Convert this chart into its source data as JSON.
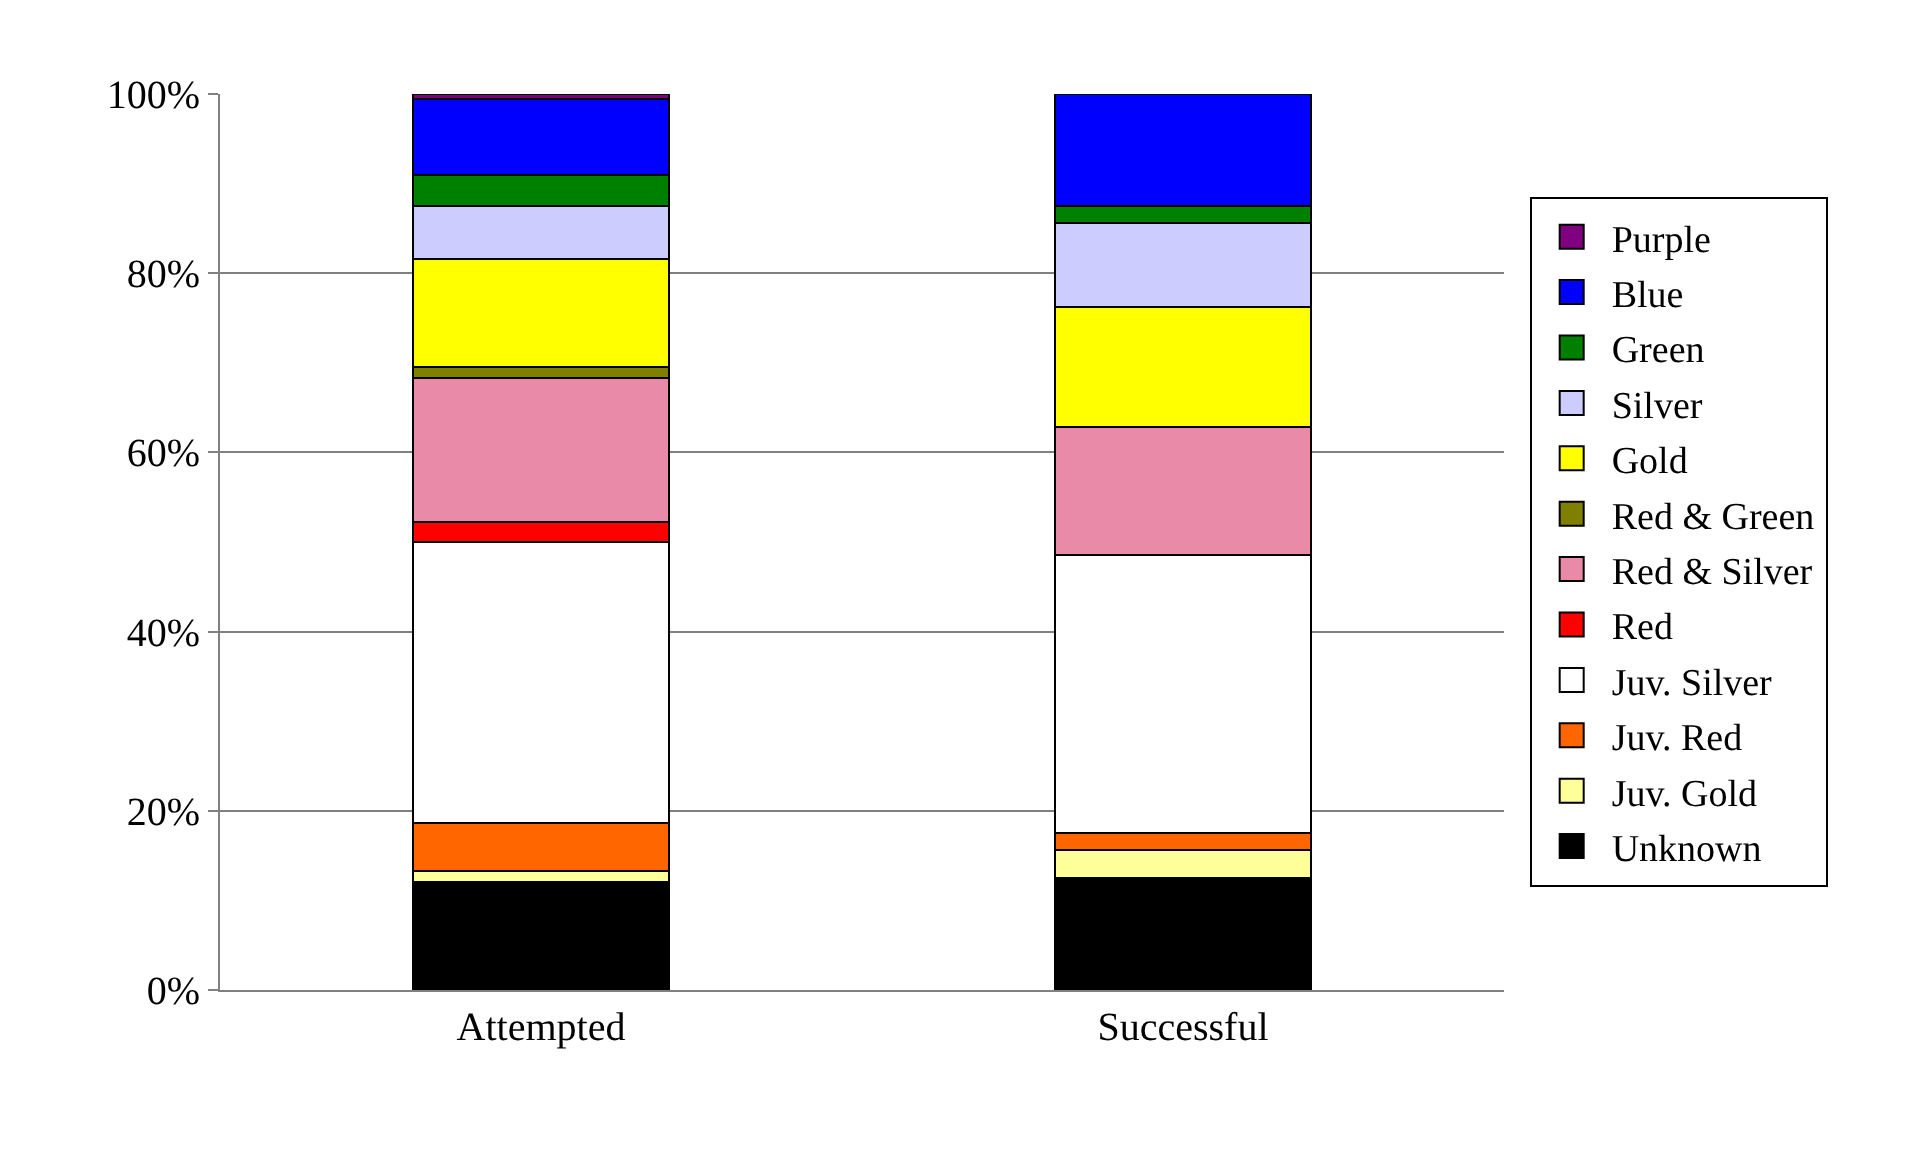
{
  "chart_data": {
    "type": "bar",
    "stacked": true,
    "categories": [
      "Attempted",
      "Successful"
    ],
    "ylim": [
      0,
      100
    ],
    "yticks": [
      {
        "value": 0,
        "label": "0%"
      },
      {
        "value": 20,
        "label": "20%"
      },
      {
        "value": 40,
        "label": "40%"
      },
      {
        "value": 60,
        "label": "60%"
      },
      {
        "value": 80,
        "label": "80%"
      },
      {
        "value": 100,
        "label": "100%"
      }
    ],
    "grid": "y",
    "legend": "right",
    "series": [
      {
        "name": "Unknown",
        "color": "#000000",
        "values": [
          12.1,
          12.5
        ]
      },
      {
        "name": "Juv. Gold",
        "color": "#ffff99",
        "values": [
          1.2,
          3.1
        ]
      },
      {
        "name": "Juv. Red",
        "color": "#ff6600",
        "values": [
          5.3,
          1.9
        ]
      },
      {
        "name": "Juv. Silver",
        "color": "#ffffff",
        "values": [
          31.4,
          31.1
        ]
      },
      {
        "name": "Red",
        "color": "#ff0000",
        "values": [
          2.2,
          null
        ]
      },
      {
        "name": "Red & Silver",
        "color": "#e88aa8",
        "values": [
          16.1,
          14.2
        ]
      },
      {
        "name": "Red & Green",
        "color": "#808000",
        "values": [
          1.2,
          null
        ]
      },
      {
        "name": "Gold",
        "color": "#ffff00",
        "values": [
          12.1,
          13.4
        ]
      },
      {
        "name": "Silver",
        "color": "#ccccff",
        "values": [
          5.9,
          9.4
        ]
      },
      {
        "name": "Green",
        "color": "#008000",
        "values": [
          3.5,
          1.9
        ]
      },
      {
        "name": "Blue",
        "color": "#0000ff",
        "values": [
          8.4,
          12.5
        ]
      },
      {
        "name": "Purple",
        "color": "#800080",
        "values": [
          0.6,
          null
        ]
      }
    ]
  }
}
